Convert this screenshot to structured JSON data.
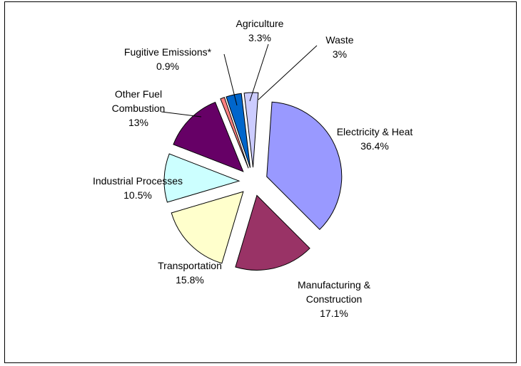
{
  "chart_data": {
    "type": "pie",
    "title": "",
    "slices": [
      {
        "label": "Electricity & Heat",
        "value_label": "36.4%",
        "value": 36.4,
        "color": "#9999FF"
      },
      {
        "label": "Manufacturing & Construction",
        "value_label": "17.1%",
        "value": 17.1,
        "color": "#993366"
      },
      {
        "label": "Transportation",
        "value_label": "15.8%",
        "value": 15.8,
        "color": "#FFFFCC"
      },
      {
        "label": "Industrial Processes",
        "value_label": "10.5%",
        "value": 10.5,
        "color": "#CCFFFF"
      },
      {
        "label": "Other Fuel Combustion",
        "value_label": "13%",
        "value": 13,
        "color": "#660066"
      },
      {
        "label": "Fugitive Emissions*",
        "value_label": "0.9%",
        "value": 0.9,
        "color": "#FF8080"
      },
      {
        "label": "Agriculture",
        "value_label": "3.3%",
        "value": 3.3,
        "color": "#0066CC"
      },
      {
        "label": "Waste",
        "value_label": "3%",
        "value": 3,
        "color": "#CCCCFF"
      }
    ]
  }
}
